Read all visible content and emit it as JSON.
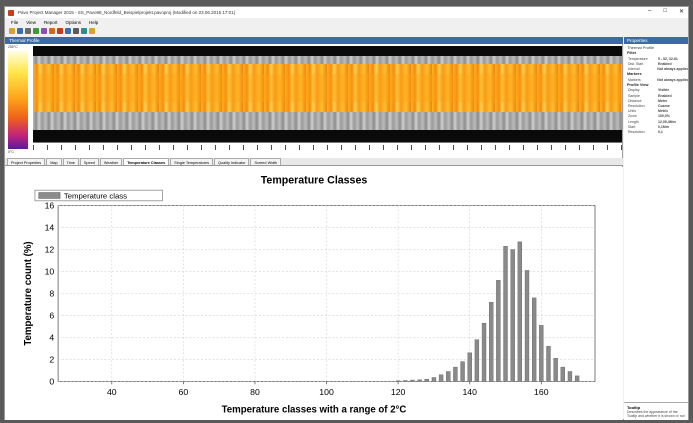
{
  "window": {
    "title": "Pavo Project Manager 2015 - SS_Pavo98_Nordfeld_Beispielprojekt.pavoproj (Modified on 23.06.2015 17:01)",
    "controls": [
      "–",
      "□",
      "✕"
    ]
  },
  "menu": [
    "File",
    "View",
    "Report",
    "Options",
    "Help"
  ],
  "toolbar_icons": [
    {
      "name": "open-icon",
      "color": "#d8a427"
    },
    {
      "name": "save-icon",
      "color": "#3a6fb3"
    },
    {
      "name": "print-icon",
      "color": "#6b6b6b"
    },
    {
      "name": "chart-icon",
      "color": "#3b9b3b"
    },
    {
      "name": "camera-icon",
      "color": "#8a4fb3"
    },
    {
      "name": "export-icon",
      "color": "#d06b1f"
    },
    {
      "name": "filter-icon",
      "color": "#c73b1e"
    },
    {
      "name": "report-icon",
      "color": "#3a6fb3"
    },
    {
      "name": "pen-icon",
      "color": "#5a5a5a"
    },
    {
      "name": "settings-icon",
      "color": "#2d8c8c"
    },
    {
      "name": "help-icon",
      "color": "#d8a427"
    }
  ],
  "thermo": {
    "header": "Thermal Profile",
    "scale_top": "250°C",
    "scale_bottom": "0°C"
  },
  "tabs": [
    {
      "label": "Project Properties",
      "active": false
    },
    {
      "label": "Map",
      "active": false
    },
    {
      "label": "Time",
      "active": false
    },
    {
      "label": "Speed",
      "active": false
    },
    {
      "label": "Weather",
      "active": false
    },
    {
      "label": "Temperature Classes",
      "active": true
    },
    {
      "label": "Single Temperatures",
      "active": false
    },
    {
      "label": "Quality Indicator",
      "active": false
    },
    {
      "label": "Screed Width",
      "active": false
    }
  ],
  "properties": {
    "header": "Properties",
    "title": "Thermal Profile",
    "sections": [
      {
        "name": "Filter",
        "rows": [
          {
            "k": "Temperature",
            "v": "5 - 52, 32-61"
          },
          {
            "k": "Dist. Start",
            "v": "Enabled"
          },
          {
            "k": "Interval",
            "v": "Not always applied"
          }
        ]
      },
      {
        "name": "Markers",
        "rows": [
          {
            "k": "Markers",
            "v": "Not always applied"
          }
        ]
      },
      {
        "name": "Profile View",
        "rows": [
          {
            "k": "Display",
            "v": "Visible"
          },
          {
            "k": "Sample",
            "v": "Enabled"
          },
          {
            "k": "Distance",
            "v": "Meter"
          },
          {
            "k": "Resolution",
            "v": "Coarse"
          },
          {
            "k": "Units",
            "v": "Metric"
          },
          {
            "k": "Zoom",
            "v": "100,0%"
          },
          {
            "k": "Length",
            "v": "12,05,4Mm"
          },
          {
            "k": "Start",
            "v": "0,1Mm"
          },
          {
            "k": "Resolution",
            "v": "0,1"
          }
        ]
      }
    ],
    "tooltip_title": "Tooltip",
    "tooltip_desc": "Describes the appearance of the Tooltip and whether it is shown or not"
  },
  "chart_data": {
    "type": "bar",
    "title": "Temperature Classes",
    "xlabel": "Temperature classes with a range of  2°C",
    "ylabel": "Temperature count (%)",
    "legend": [
      "Temperature class"
    ],
    "legend_position": "top-left",
    "grid": true,
    "xlim": [
      25,
      175
    ],
    "ylim": [
      0,
      16
    ],
    "xticks": [
      40,
      60,
      80,
      100,
      120,
      140,
      160
    ],
    "yticks": [
      0,
      2,
      4,
      6,
      8,
      10,
      12,
      14,
      16
    ],
    "x": [
      120,
      122,
      124,
      126,
      128,
      130,
      132,
      134,
      136,
      138,
      140,
      142,
      144,
      146,
      148,
      150,
      152,
      154,
      156,
      158,
      160,
      162,
      164,
      166,
      168,
      170
    ],
    "values": [
      0.05,
      0.08,
      0.12,
      0.15,
      0.2,
      0.35,
      0.6,
      0.9,
      1.3,
      1.8,
      2.6,
      3.8,
      5.3,
      7.2,
      9.2,
      12.3,
      12.0,
      12.7,
      10.1,
      7.6,
      5.1,
      3.2,
      2.1,
      1.3,
      0.9,
      0.5
    ]
  }
}
